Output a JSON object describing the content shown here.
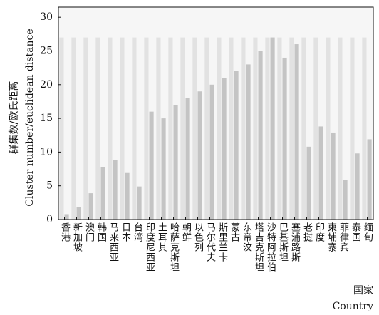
{
  "chart_data": {
    "type": "bar",
    "categories": [
      "香港",
      "新加坡",
      "澳门",
      "韩国",
      "马来西亚",
      "日本",
      "台湾",
      "印度尼西亚",
      "土耳其",
      "哈萨克斯坦",
      "朝鲜",
      "以色列",
      "马尔代夫",
      "斯里兰卡",
      "蒙古",
      "东帝汶",
      "塔吉克斯坦",
      "沙特阿拉伯",
      "巴基斯坦",
      "塞浦路斯",
      "老挝",
      "印度",
      "柬埔寨",
      "菲律宾",
      "泰国",
      "缅甸"
    ],
    "series": [
      {
        "color": "#e2e2e2",
        "values": [
          27,
          27,
          27,
          27,
          27,
          27,
          27,
          27,
          27,
          27,
          27,
          27,
          27,
          27,
          27,
          27,
          27,
          27,
          27,
          27,
          27,
          27,
          27,
          27,
          27,
          27
        ]
      },
      {
        "color": "#c4c4c4",
        "values": [
          0.8,
          1.8,
          3.9,
          7.8,
          8.8,
          6.9,
          4.9,
          16,
          15,
          17,
          18,
          19,
          20,
          21,
          22,
          23,
          25,
          27,
          24,
          26,
          10.8,
          13.8,
          12.9,
          5.9,
          9.8,
          11.9
        ]
      }
    ],
    "y_label": [
      "群集数/欧氏距离",
      "Cluster number/euclidean distance"
    ],
    "x_label": [
      "国家",
      "Country"
    ],
    "ylim": [
      0,
      31.5
    ],
    "yticks": [
      0,
      5,
      10,
      15,
      20,
      25,
      30
    ]
  }
}
